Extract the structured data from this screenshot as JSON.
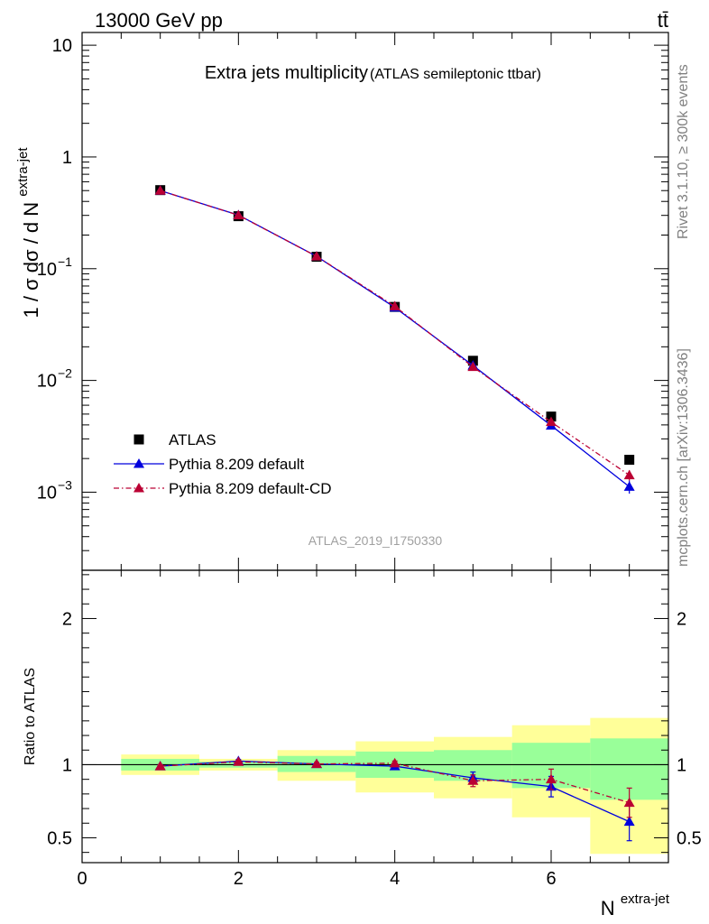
{
  "header": {
    "beam": "13000 GeV pp",
    "process": "tt̄"
  },
  "side_labels": {
    "rivet": "Rivet 3.1.10, ≥ 300k events",
    "mcplots": "mcplots.cern.ch [arXiv:1306.3436]"
  },
  "chart_data": [
    {
      "type": "scatter",
      "title": "Extra jets multiplicity",
      "subtitle": "(ATLAS semileptonic ttbar)",
      "analysis_id": "ATLAS_2019_I1750330",
      "ylabel_main": "1 / σ dσ / d N",
      "ylabel_sup": "extra-jet",
      "yscale": "log",
      "xlim": [
        0,
        7.5
      ],
      "ylim": [
        0.0002,
        13
      ],
      "ytick_labels": {
        "1": "1",
        "10": "10",
        "0.1": "10",
        "0.01": "10",
        "0.001": "10"
      },
      "ytick_exponents": {
        "0.1": "−1",
        "0.01": "−2",
        "0.001": "−3"
      },
      "legend_position": "bottom-left",
      "series": [
        {
          "name": "ATLAS",
          "color": "#000000",
          "marker": "square",
          "x": [
            1,
            2,
            3,
            4,
            5,
            6,
            7
          ],
          "y": [
            0.505,
            0.295,
            0.128,
            0.0455,
            0.015,
            0.00475,
            0.00195
          ],
          "xerr": [
            0.5,
            0.5,
            0.5,
            0.5,
            0.5,
            0.5,
            0.5
          ]
        },
        {
          "name": "Pythia 8.209 default",
          "color": "#0000dd",
          "marker": "triangle",
          "line": "solid",
          "x": [
            1,
            2,
            3,
            4,
            5,
            6,
            7
          ],
          "y": [
            0.5,
            0.302,
            0.129,
            0.045,
            0.0136,
            0.00395,
            0.00112
          ],
          "yerr": [
            0.004,
            0.003,
            0.0015,
            0.0006,
            0.0003,
            0.0002,
            0.00015
          ]
        },
        {
          "name": "Pythia 8.209 default-CD",
          "color": "#bb0033",
          "marker": "triangle",
          "line": "dashdot",
          "x": [
            1,
            2,
            3,
            4,
            5,
            6,
            7
          ],
          "y": [
            0.5,
            0.301,
            0.129,
            0.0461,
            0.0132,
            0.00425,
            0.00142
          ],
          "yerr": [
            0.004,
            0.003,
            0.0015,
            0.0006,
            0.0003,
            0.0002,
            0.00015
          ]
        }
      ]
    },
    {
      "type": "scatter",
      "ylabel": "Ratio to ATLAS",
      "xlabel_main": "N",
      "xlabel_sup": "extra-jet",
      "xlim": [
        0,
        7.5
      ],
      "ylim": [
        0.33,
        2.33
      ],
      "xtick_labels": [
        "0",
        "2",
        "4",
        "6"
      ],
      "xtick_values": [
        0,
        2,
        4,
        6
      ],
      "ytick_labels": [
        "0.5",
        "1",
        "2"
      ],
      "ytick_values": [
        0.5,
        1,
        2
      ],
      "bands": {
        "x_low": [
          0.5,
          1.5,
          2.5,
          3.5,
          4.5,
          5.5,
          6.5
        ],
        "x_high": [
          1.5,
          2.5,
          3.5,
          4.5,
          5.5,
          6.5,
          7.5
        ],
        "stat_low": [
          0.96,
          0.98,
          0.95,
          0.91,
          0.89,
          0.84,
          0.76
        ],
        "stat_high": [
          1.04,
          1.02,
          1.06,
          1.09,
          1.1,
          1.15,
          1.18
        ],
        "total_low": [
          0.93,
          0.96,
          0.89,
          0.81,
          0.77,
          0.64,
          0.39
        ],
        "total_high": [
          1.07,
          1.04,
          1.1,
          1.16,
          1.19,
          1.27,
          1.32
        ],
        "stat_color": "#99ff99",
        "total_color": "#ffff99"
      },
      "series": [
        {
          "name": "Pythia 8.209 default",
          "color": "#0000dd",
          "x": [
            1,
            2,
            3,
            4,
            5,
            6,
            7
          ],
          "y": [
            0.99,
            1.025,
            1.005,
            0.99,
            0.91,
            0.85,
            0.61
          ],
          "yerr": [
            0.01,
            0.01,
            0.01,
            0.015,
            0.04,
            0.07,
            0.13
          ]
        },
        {
          "name": "Pythia 8.209 default-CD",
          "color": "#bb0033",
          "x": [
            1,
            2,
            3,
            4,
            5,
            6,
            7
          ],
          "y": [
            0.99,
            1.02,
            1.005,
            1.01,
            0.89,
            0.9,
            0.74
          ],
          "yerr": [
            0.01,
            0.01,
            0.01,
            0.015,
            0.04,
            0.07,
            0.1
          ]
        }
      ]
    }
  ]
}
